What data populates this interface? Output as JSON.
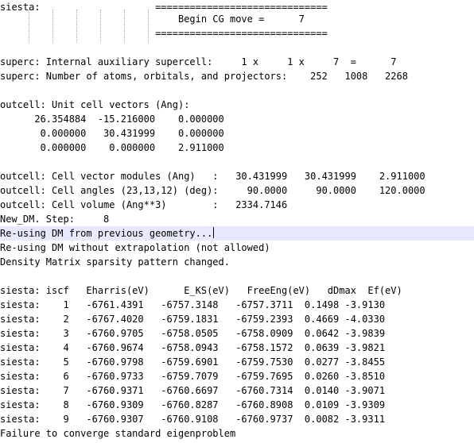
{
  "lines": [
    "siesta:                    ==============================",
    "                               Begin CG move =      7",
    "                           ==============================",
    "",
    "superc: Internal auxiliary supercell:     1 x     1 x     7  =      7",
    "superc: Number of atoms, orbitals, and projectors:    252   1008   2268",
    "",
    "outcell: Unit cell vectors (Ang):",
    "      26.354884  -15.216000    0.000000",
    "       0.000000   30.431999    0.000000",
    "       0.000000    0.000000    2.911000",
    "",
    "outcell: Cell vector modules (Ang)   :   30.431999   30.431999    2.911000",
    "outcell: Cell angles (23,13,12) (deg):     90.0000     90.0000    120.0000",
    "outcell: Cell volume (Ang**3)        :   2334.7146",
    "New_DM. Step:     8",
    "Re-using DM from previous geometry...",
    "Re-using DM without extrapolation (not allowed)",
    "Density Matrix sparsity pattern changed.",
    "",
    "siesta: iscf   Eharris(eV)      E_KS(eV)   FreeEng(eV)   dDmax  Ef(eV)",
    "siesta:    1   -6761.4391   -6757.3148   -6757.3711  0.1498 -3.9130",
    "siesta:    2   -6767.4020   -6759.1831   -6759.2393  0.4669 -4.0330",
    "siesta:    3   -6760.9705   -6758.0505   -6758.0909  0.0642 -3.9839",
    "siesta:    4   -6760.9674   -6758.0943   -6758.1572  0.0639 -3.9821",
    "siesta:    5   -6760.9798   -6759.6901   -6759.7530  0.0277 -3.8455",
    "siesta:    6   -6760.9733   -6759.7079   -6759.7695  0.0260 -3.8510",
    "siesta:    7   -6760.9371   -6760.6697   -6760.7314  0.0140 -3.9071",
    "siesta:    8   -6760.9309   -6760.8287   -6760.8908  0.0109 -3.9309",
    "siesta:    9   -6760.9307   -6760.9108   -6760.9737  0.0082 -3.9311",
    "Failure to converge standard eigenproblem"
  ]
}
